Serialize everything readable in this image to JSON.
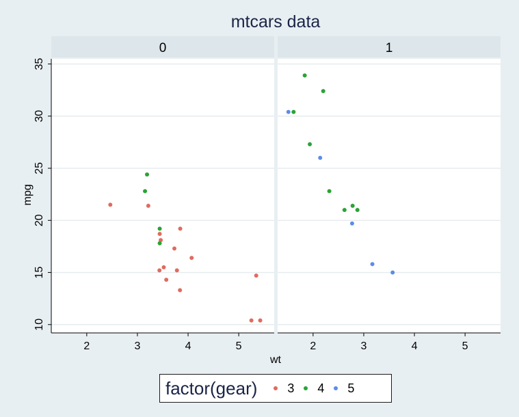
{
  "chart_data": {
    "type": "scatter",
    "title": "mtcars data",
    "xlabel": "wt",
    "ylabel": "mpg",
    "xlim": [
      1.3,
      5.7
    ],
    "ylim": [
      9.2,
      35.5
    ],
    "x_ticks": [
      2,
      3,
      4,
      5
    ],
    "y_ticks": [
      10,
      15,
      20,
      25,
      30,
      35
    ],
    "facet_variable": "am",
    "panels": [
      {
        "label": "0",
        "points": [
          {
            "x": 2.465,
            "y": 21.5,
            "gear": "3"
          },
          {
            "x": 3.215,
            "y": 21.4,
            "gear": "3"
          },
          {
            "x": 3.44,
            "y": 18.7,
            "gear": "3"
          },
          {
            "x": 3.46,
            "y": 18.1,
            "gear": "3"
          },
          {
            "x": 3.57,
            "y": 14.3,
            "gear": "3"
          },
          {
            "x": 4.07,
            "y": 16.4,
            "gear": "3"
          },
          {
            "x": 3.73,
            "y": 17.3,
            "gear": "3"
          },
          {
            "x": 3.78,
            "y": 15.2,
            "gear": "3"
          },
          {
            "x": 5.25,
            "y": 10.4,
            "gear": "3"
          },
          {
            "x": 5.424,
            "y": 10.4,
            "gear": "3"
          },
          {
            "x": 5.345,
            "y": 14.7,
            "gear": "3"
          },
          {
            "x": 3.52,
            "y": 15.5,
            "gear": "3"
          },
          {
            "x": 3.435,
            "y": 15.2,
            "gear": "3"
          },
          {
            "x": 3.84,
            "y": 13.3,
            "gear": "3"
          },
          {
            "x": 3.845,
            "y": 19.2,
            "gear": "3"
          },
          {
            "x": 3.19,
            "y": 24.4,
            "gear": "4"
          },
          {
            "x": 3.15,
            "y": 22.8,
            "gear": "4"
          },
          {
            "x": 3.44,
            "y": 19.2,
            "gear": "4"
          },
          {
            "x": 3.44,
            "y": 17.8,
            "gear": "4"
          }
        ]
      },
      {
        "label": "1",
        "points": [
          {
            "x": 2.62,
            "y": 21.0,
            "gear": "4"
          },
          {
            "x": 2.875,
            "y": 21.0,
            "gear": "4"
          },
          {
            "x": 2.32,
            "y": 22.8,
            "gear": "4"
          },
          {
            "x": 2.2,
            "y": 32.4,
            "gear": "4"
          },
          {
            "x": 1.615,
            "y": 30.4,
            "gear": "4"
          },
          {
            "x": 1.835,
            "y": 33.9,
            "gear": "4"
          },
          {
            "x": 1.935,
            "y": 27.3,
            "gear": "4"
          },
          {
            "x": 2.78,
            "y": 21.4,
            "gear": "4"
          },
          {
            "x": 2.14,
            "y": 26.0,
            "gear": "5"
          },
          {
            "x": 1.513,
            "y": 30.4,
            "gear": "5"
          },
          {
            "x": 3.17,
            "y": 15.8,
            "gear": "5"
          },
          {
            "x": 2.77,
            "y": 19.7,
            "gear": "5"
          },
          {
            "x": 3.57,
            "y": 15.0,
            "gear": "5"
          }
        ]
      }
    ],
    "legend": {
      "title": "factor(gear)",
      "position": "bottom",
      "entries": [
        {
          "label": "3",
          "color": "#e06b5f"
        },
        {
          "label": "4",
          "color": "#2aa336"
        },
        {
          "label": "5",
          "color": "#5b8de8"
        }
      ]
    },
    "colors": {
      "background": "#e8eff2",
      "plot_bg": "#ffffff",
      "strip_bg": "#dde6ea",
      "grid": "#e6ecef",
      "title": "#1a2447"
    }
  }
}
